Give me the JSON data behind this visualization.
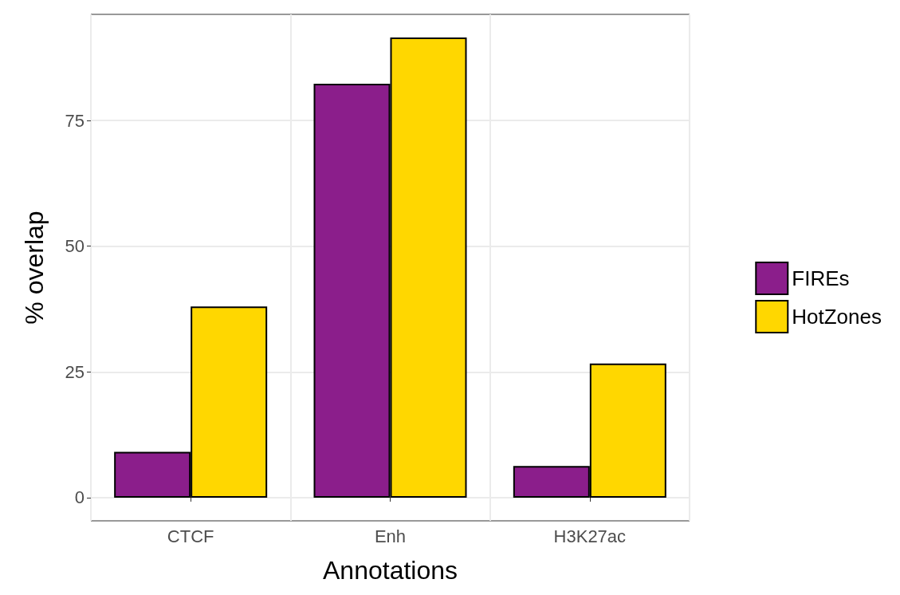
{
  "chart_data": {
    "type": "bar",
    "xlabel": "Annotations",
    "ylabel": "% overlap",
    "categories": [
      "CTCF",
      "Enh",
      "H3K27ac"
    ],
    "series": [
      {
        "name": "FIREs",
        "color": "#8b1e8b",
        "values": [
          9.1,
          82.3,
          6.3
        ]
      },
      {
        "name": "HotZones",
        "color": "#ffd700",
        "values": [
          38.0,
          91.5,
          26.7
        ]
      }
    ],
    "ylim": [
      -4.6,
      96.1
    ],
    "yticks": [
      0,
      25,
      50,
      75
    ],
    "grid": true,
    "legend": "right"
  }
}
